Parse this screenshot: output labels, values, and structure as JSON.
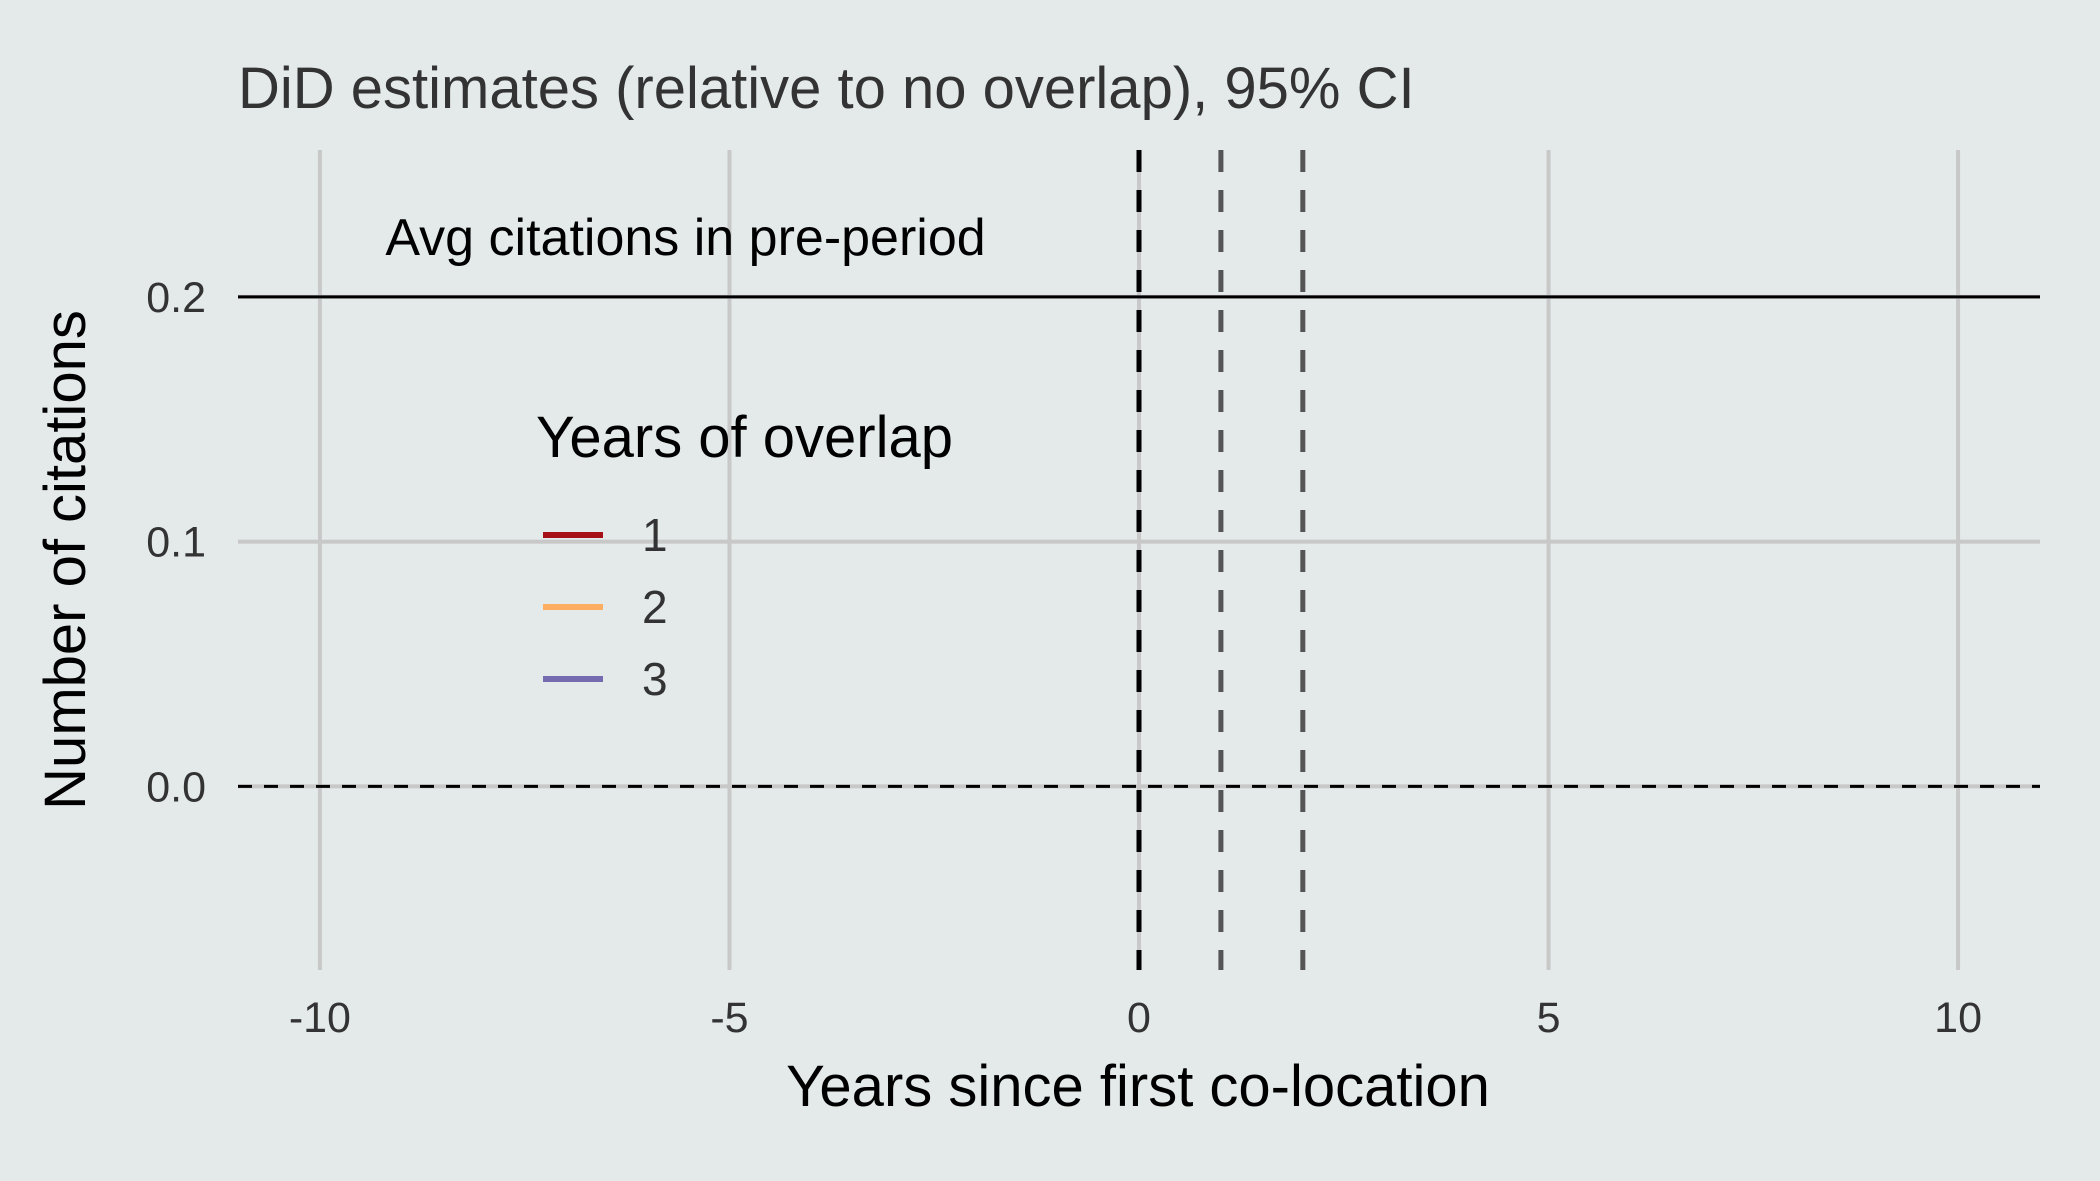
{
  "chart_data": {
    "type": "line",
    "title": "DiD estimates (relative to no overlap), 95% CI",
    "xlabel": "Years since first co-location",
    "ylabel": "Number of citations",
    "xlim": [
      -11,
      11
    ],
    "ylim": [
      -0.075,
      0.26
    ],
    "x_ticks": [
      -10,
      -5,
      0,
      5,
      10
    ],
    "x_tick_labels": [
      "-10",
      "-5",
      "0",
      "5",
      "10"
    ],
    "y_ticks": [
      0.0,
      0.1,
      0.2
    ],
    "y_tick_labels": [
      "0.0",
      "0.1",
      "0.2"
    ],
    "grid": true,
    "reference_lines": {
      "horizontal_solid": 0.2,
      "horizontal_dashed": 0.0,
      "vertical_dashed": [
        0,
        1,
        2
      ]
    },
    "annotation": {
      "text": "Avg citations in pre-period",
      "x": -9.2,
      "y": 0.2
    },
    "legend": {
      "title": "Years of overlap",
      "placement": "center-left",
      "entries": [
        {
          "label": "1",
          "color": "#a50f15"
        },
        {
          "label": "2",
          "color": "#fdae61"
        },
        {
          "label": "3",
          "color": "#756bb1"
        }
      ]
    },
    "series": [
      {
        "name": "1",
        "color": "#a50f15",
        "points": []
      },
      {
        "name": "2",
        "color": "#fdae61",
        "points": []
      },
      {
        "name": "3",
        "color": "#756bb1",
        "points": []
      }
    ]
  },
  "colors": {
    "background": "#e4eaea",
    "grid": "#c8c8c8",
    "reference": "#000000",
    "vline_secondary": "#555555"
  }
}
